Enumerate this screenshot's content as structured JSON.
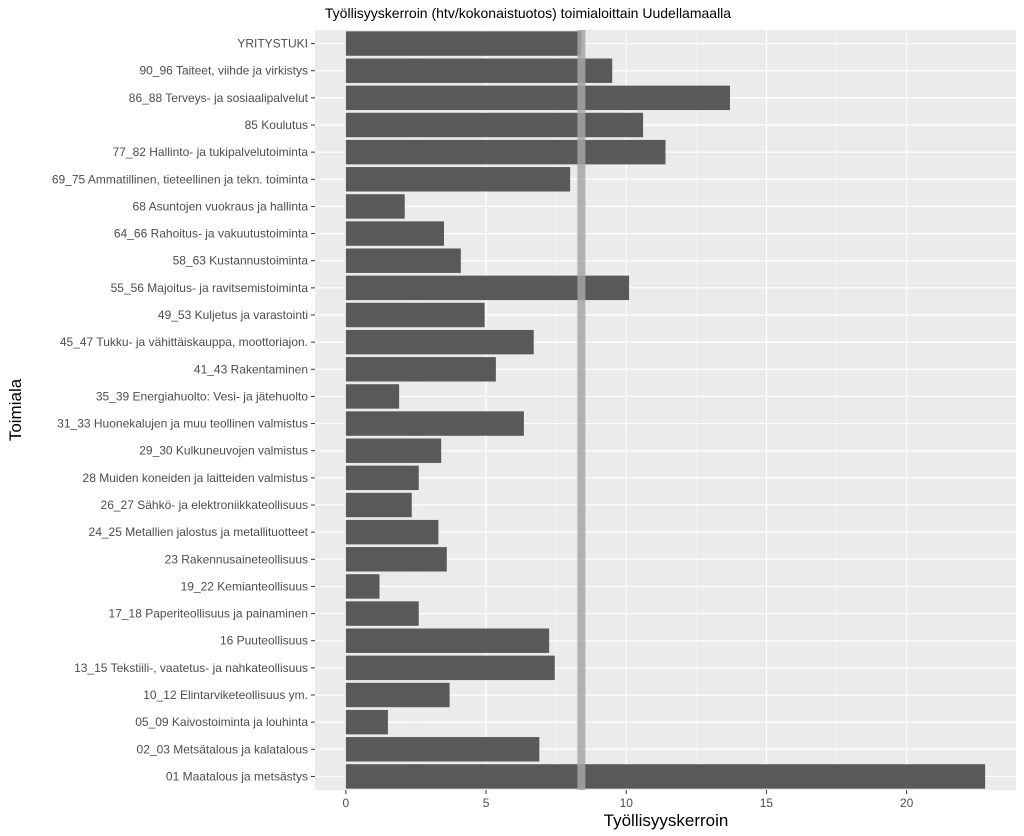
{
  "chart_data": {
    "type": "bar",
    "orientation": "horizontal",
    "title": "Työllisyyskerroin (htv/kokonaistuotos) toimialoittain Uudellamaalla",
    "xlabel": "Työllisyyskerroin",
    "ylabel": "Toimiala",
    "xlim": [
      -1.1,
      23.9
    ],
    "xticks": [
      0,
      5,
      10,
      15,
      20
    ],
    "grid": true,
    "bar_color": "#595959",
    "panel_background": "#ebebeb",
    "reference_line": {
      "value": 8.4,
      "color": "#a6a6a6"
    },
    "categories": [
      "YRITYSTUKI",
      "90_96 Taiteet, viihde ja virkistys",
      "86_88 Terveys- ja sosiaalipalvelut",
      "85 Koulutus",
      "77_82 Hallinto- ja tukipalvelutoiminta",
      "69_75 Ammatillinen, tieteellinen ja tekn. toiminta",
      "68 Asuntojen vuokraus ja hallinta",
      "64_66 Rahoitus- ja vakuutustoiminta",
      "58_63 Kustannustoiminta",
      "55_56 Majoitus- ja ravitsemistoiminta",
      "49_53 Kuljetus ja varastointi",
      "45_47 Tukku- ja vähittäiskauppa, moottoriajon.",
      "41_43 Rakentaminen",
      "35_39 Energiahuolto: Vesi- ja jätehuolto",
      "31_33 Huonekalujen ja muu teollinen valmistus",
      "29_30 Kulkuneuvojen valmistus",
      "28 Muiden koneiden ja laitteiden valmistus",
      "26_27 Sähkö- ja elektroniikkateollisuus",
      "24_25 Metallien jalostus ja metallituotteet",
      "23 Rakennusaineteollisuus",
      "19_22 Kemianteollisuus",
      "17_18 Paperiteollisuus ja painaminen",
      "16 Puuteollisuus",
      "13_15 Tekstiili-, vaatetus- ja nahkateollisuus",
      "10_12 Elintarviketeollisuus ym.",
      "05_09 Kaivostoiminta ja louhinta",
      "02_03 Metsätalous ja kalatalous",
      "01 Maatalous ja metsästys"
    ],
    "values": [
      8.4,
      9.5,
      13.7,
      10.6,
      11.4,
      8.0,
      2.1,
      3.5,
      4.1,
      10.1,
      4.95,
      6.7,
      5.35,
      1.9,
      6.35,
      3.4,
      2.6,
      2.35,
      3.3,
      3.6,
      1.2,
      2.6,
      7.25,
      7.45,
      3.7,
      1.5,
      6.9,
      22.8
    ]
  }
}
